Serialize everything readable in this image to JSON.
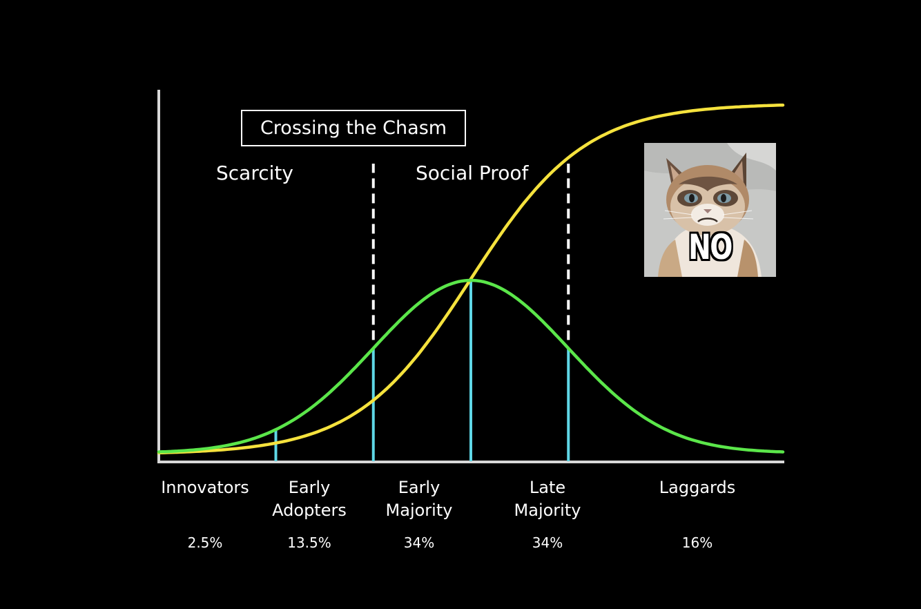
{
  "chart_data": {
    "type": "line",
    "title": "Crossing the Chasm",
    "regions": [
      "Scarcity",
      "Social Proof"
    ],
    "categories": [
      "Innovators",
      "Early Adopters",
      "Early Majority",
      "Late Majority",
      "Laggards"
    ],
    "category_lines": [
      [
        "Innovators"
      ],
      [
        "Early",
        "Adopters"
      ],
      [
        "Early",
        "Majority"
      ],
      [
        "Late",
        "Majority"
      ],
      [
        "Laggards"
      ]
    ],
    "shares_percent": [
      2.5,
      13.5,
      34,
      34,
      16
    ],
    "share_labels": [
      "2.5%",
      "13.5%",
      "34%",
      "34%",
      "16%"
    ],
    "x_range_sd": [
      -3.2,
      3.2
    ],
    "boundaries_sd": [
      -2,
      -1,
      0,
      1
    ],
    "chasm_markers_sd": [
      -1,
      1
    ],
    "series": [
      {
        "type": "bell-curve",
        "color": "#5be64a"
      },
      {
        "type": "s-curve",
        "color": "#f5e23d"
      }
    ],
    "axis_color": "#d8d8d8",
    "boundary_color": "#5fd7e6"
  },
  "meme": {
    "caption": "NO",
    "subject": "grumpy-cat"
  }
}
